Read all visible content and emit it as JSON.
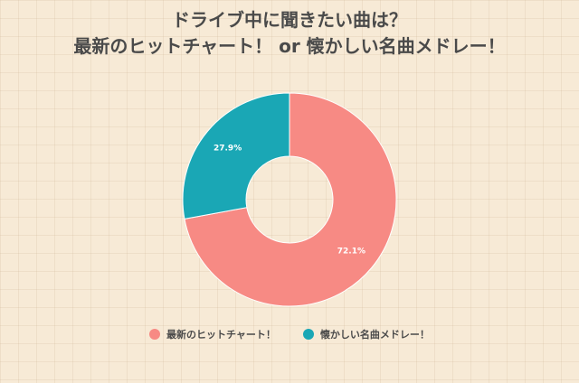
{
  "title_line1": "ドライブ中に聞きたい曲は？",
  "title_line2": "最新のヒットチャート！ or 懐かしい名曲メドレー！",
  "colors": {
    "background": "#f7ead6",
    "series_1": "#f78a84",
    "series_2": "#1aa7b5"
  },
  "chart_data": {
    "type": "pie",
    "donut": true,
    "labels": [
      "最新のヒットチャート！",
      "懐かしい名曲メドレー！"
    ],
    "values": [
      72.1,
      27.9
    ],
    "data_labels": [
      "72.1%",
      "27.9%"
    ],
    "colors": [
      "#f78a84",
      "#1aa7b5"
    ],
    "start_angle": "top",
    "direction": "clockwise",
    "legend_position": "bottom"
  }
}
